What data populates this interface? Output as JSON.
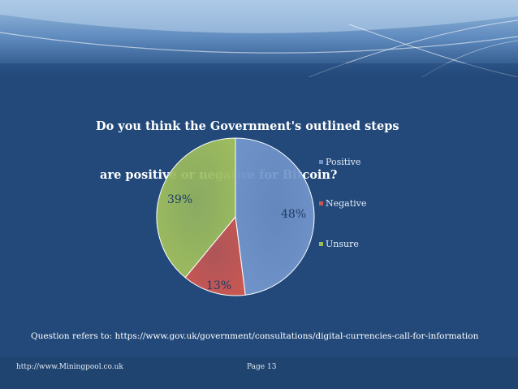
{
  "slide": {
    "title_line1": "Do you think the Government's outlined steps",
    "title_line2": " are positive or negative for Bitcoin?",
    "footnote": "Question refers to: https://www.gov.uk/government/consultations/digital-currencies-call-for-information",
    "footer_left": "http://www.Miningpool.co.uk",
    "footer_center": "Page 13"
  },
  "colors": {
    "background": "#22497a",
    "positive": "#6f93c9",
    "negative": "#c65753",
    "unsure": "#9cbb5e"
  },
  "chart_data": {
    "type": "pie",
    "title": "Do you think the Government's outlined steps are positive or negative for Bitcoin?",
    "categories": [
      "Positive",
      "Negative",
      "Unsure"
    ],
    "values": [
      48,
      13,
      39
    ],
    "data_labels": [
      "48%",
      "13%",
      "39%"
    ],
    "legend_position": "right"
  }
}
